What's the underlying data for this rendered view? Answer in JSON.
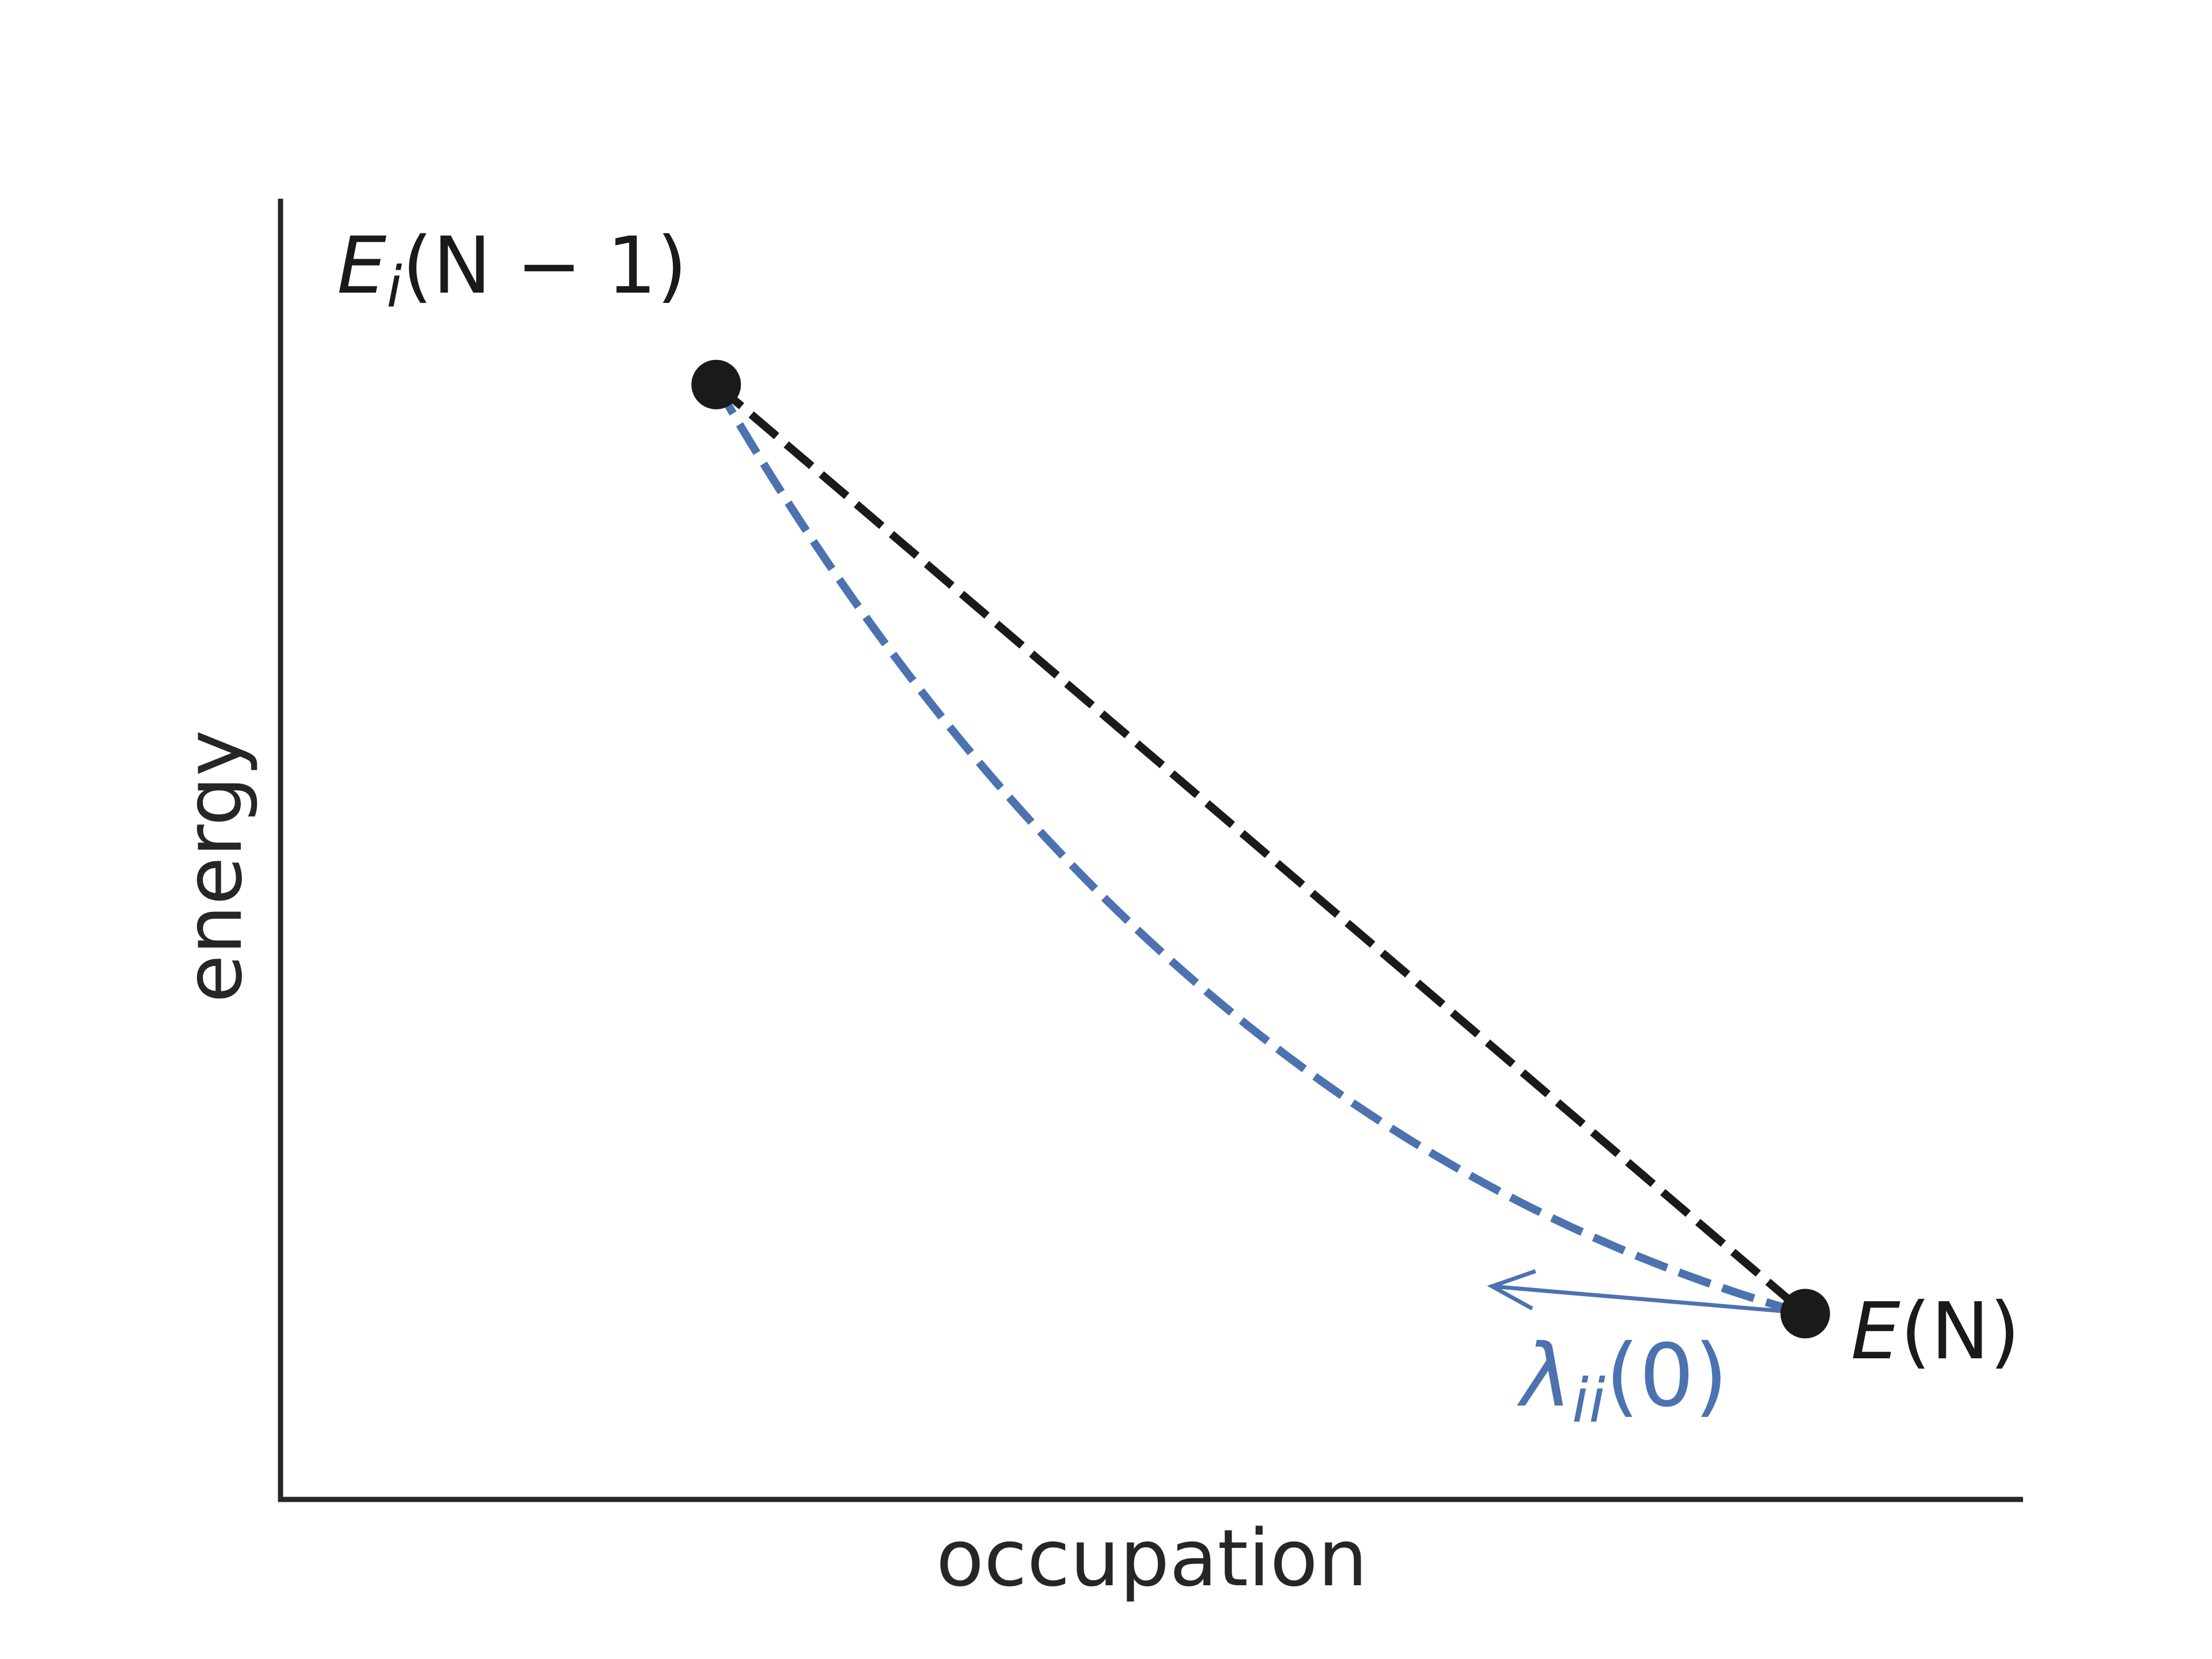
{
  "chart_data": {
    "type": "line",
    "xlabel": "occupation",
    "ylabel": "energy",
    "xlim": [
      -0.4,
      1.2
    ],
    "ylim": [
      0,
      1.4
    ],
    "grid": false,
    "points": [
      {
        "name": "start",
        "x": 0.0,
        "y": 1.2,
        "label_italic": "E",
        "label_sub": "i",
        "label_rest": "(N − 1)"
      },
      {
        "name": "end",
        "x": 1.0,
        "y": 0.2,
        "label_italic": "E",
        "label_rest": "(N)"
      }
    ],
    "series": [
      {
        "style": "dashed",
        "color": "#1a1a1a",
        "kind": "linear-interpolation"
      },
      {
        "style": "dashed",
        "color": "#4c72b0",
        "kind": "convex-curve"
      }
    ],
    "annotation": {
      "text_symbol": "λ",
      "text_sub": "ii",
      "text_rest": "(0)",
      "color": "#4c72b0",
      "points_at": "end",
      "slope_tangent_at": "end"
    },
    "colors": {
      "axis": "#262626",
      "linear": "#1a1a1a",
      "curve": "#4c72b0",
      "marker": "#1a1a1a"
    }
  }
}
